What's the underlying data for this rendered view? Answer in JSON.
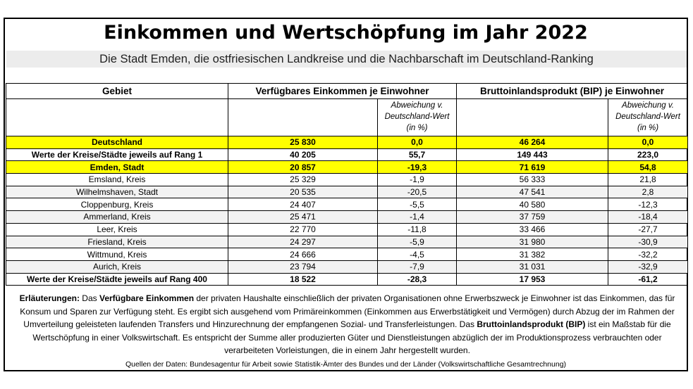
{
  "title": "Einkommen und Wertschöpfung im Jahr 2022",
  "subtitle": "Die Stadt Emden, die ostfriesischen Landkreise und die Nachbarschaft im Deutschland-Ranking",
  "headers": {
    "gebiet": "Gebiet",
    "einkommen": "Verfügbares Einkommen je Einwohner",
    "bip": "Bruttoinlandsprodukt (BIP) je Einwohner",
    "abweichung": "Abweichung v. Deutschland-Wert (in %)"
  },
  "rows": [
    {
      "gebiet": "Deutschland",
      "einkommen": "25 830",
      "einkommen_abw": "0,0",
      "bip": "46 264",
      "bip_abw": "0,0",
      "highlight": true,
      "bold": true
    },
    {
      "gebiet": "Werte der Kreise/Städte jeweils auf Rang 1",
      "einkommen": "40 205",
      "einkommen_abw": "55,7",
      "bip": "149 443",
      "bip_abw": "223,0",
      "highlight": false,
      "bold": true
    },
    {
      "gebiet": "Emden, Stadt",
      "einkommen": "20 857",
      "einkommen_abw": "-19,3",
      "bip": "71 619",
      "bip_abw": "54,8",
      "highlight": true,
      "bold": true
    },
    {
      "gebiet": "Emsland, Kreis",
      "einkommen": "25 329",
      "einkommen_abw": "-1,9",
      "bip": "56 333",
      "bip_abw": "21,8",
      "highlight": false,
      "bold": false
    },
    {
      "gebiet": "Wilhelmshaven, Stadt",
      "einkommen": "20 535",
      "einkommen_abw": "-20,5",
      "bip": "47 541",
      "bip_abw": "2,8",
      "highlight": false,
      "bold": false
    },
    {
      "gebiet": "Cloppenburg, Kreis",
      "einkommen": "24 407",
      "einkommen_abw": "-5,5",
      "bip": "40 580",
      "bip_abw": "-12,3",
      "highlight": false,
      "bold": false
    },
    {
      "gebiet": "Ammerland, Kreis",
      "einkommen": "25 471",
      "einkommen_abw": "-1,4",
      "bip": "37 759",
      "bip_abw": "-18,4",
      "highlight": false,
      "bold": false
    },
    {
      "gebiet": "Leer, Kreis",
      "einkommen": "22 770",
      "einkommen_abw": "-11,8",
      "bip": "33 466",
      "bip_abw": "-27,7",
      "highlight": false,
      "bold": false
    },
    {
      "gebiet": "Friesland, Kreis",
      "einkommen": "24 297",
      "einkommen_abw": "-5,9",
      "bip": "31 980",
      "bip_abw": "-30,9",
      "highlight": false,
      "bold": false
    },
    {
      "gebiet": "Wittmund, Kreis",
      "einkommen": "24 666",
      "einkommen_abw": "-4,5",
      "bip": "31 382",
      "bip_abw": "-32,2",
      "highlight": false,
      "bold": false
    },
    {
      "gebiet": "Aurich, Kreis",
      "einkommen": "23 794",
      "einkommen_abw": "-7,9",
      "bip": "31 031",
      "bip_abw": "-32,9",
      "highlight": false,
      "bold": false
    },
    {
      "gebiet": "Werte der Kreise/Städte jeweils auf Rang 400",
      "einkommen": "18 522",
      "einkommen_abw": "-28,3",
      "bip": "17 953",
      "bip_abw": "-61,2",
      "highlight": false,
      "bold": true
    }
  ],
  "notes": {
    "label": "Erläuterungen:",
    "t1": " Das ",
    "b1": "Verfügbare Einkommen",
    "t2": " der privaten Haushalte einschließlich der privaten Organisationen ohne Erwerbszweck je Einwohner ist das Einkommen, das für Konsum und Sparen zur Verfügung steht. Es ergibt sich ausgehend vom Primäreinkommen (Einkommen aus Erwerbstätigkeit und Vermögen) durch Abzug der im Rahmen der Umverteilung geleisteten laufenden Transfers und Hinzurechnung der empfangenen Sozial- und Transferleistungen. Das ",
    "b2": "Bruttoinlandsprodukt (BIP)",
    "t3": " ist ein Maßstab für die Wertschöpfung in einer Volkswirtschaft. Es  entspricht der Summe aller produzierten Güter und Dienstleistungen abzüglich der im Produktionsprozess verbrauchten oder verarbeiteten Vorleistungen, die in einem Jahr hergestellt wurden."
  },
  "source": "Quellen der Daten: Bundesagentur für Arbeit sowie Statistik-Ämter des Bundes und der Länder (Volkswirtschaftliche Gesamtrechnung)",
  "colors": {
    "highlight": "#ffff00",
    "shade": "#f2f2f2",
    "subtitle_bg": "#ececec"
  }
}
